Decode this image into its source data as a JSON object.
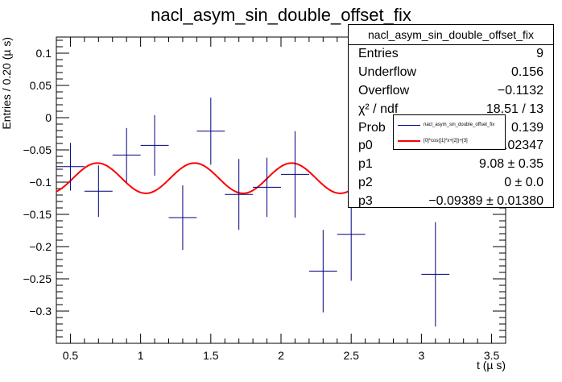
{
  "chart_data": {
    "type": "scatter",
    "title": "nacl_asym_sin_double_offset_fix",
    "xlabel": "t (µ s)",
    "ylabel": "Entries / 0.20 (µ s)",
    "xlim": [
      0.4,
      3.6
    ],
    "ylim": [
      -0.35,
      0.125
    ],
    "xticks": [
      0.5,
      1,
      1.5,
      2,
      2.5,
      3,
      3.5
    ],
    "xtick_labels": [
      "0.5",
      "1",
      "1.5",
      "2",
      "2.5",
      "3",
      "3.5"
    ],
    "yticks": [
      -0.3,
      -0.25,
      -0.2,
      -0.15,
      -0.1,
      -0.05,
      0,
      0.05,
      0.1
    ],
    "ytick_labels": [
      "−0.3",
      "−0.25",
      "−0.2",
      "−0.15",
      "−0.1",
      "−0.05",
      "0",
      "0.05",
      "0.1"
    ],
    "grid": false,
    "series": [
      {
        "name": "nacl_asym_sin_double_offset_fix",
        "kind": "error-bars",
        "color": "#000080",
        "x": [
          0.5,
          0.7,
          0.9,
          1.1,
          1.3,
          1.5,
          1.7,
          1.9,
          2.1,
          2.3,
          2.5,
          3.1
        ],
        "y": [
          -0.076,
          -0.114,
          -0.058,
          -0.043,
          -0.155,
          -0.021,
          -0.119,
          -0.108,
          -0.088,
          -0.238,
          -0.181,
          -0.243
        ],
        "xerr": 0.1,
        "yerr": [
          0.037,
          0.04,
          0.042,
          0.047,
          0.05,
          0.052,
          0.055,
          0.046,
          0.067,
          0.064,
          0.072,
          0.081
        ]
      },
      {
        "name": "[0]*cos([1]*x+[2])+[3]",
        "kind": "line",
        "color": "#ff0000",
        "params": {
          "p0": 0.02347,
          "p1": 9.08,
          "p2": 0.0,
          "p3": -0.09389
        }
      }
    ]
  },
  "stats_box": {
    "title": "nacl_asym_sin_double_offset_fix",
    "rows": [
      {
        "label": "Entries",
        "value": "9"
      },
      {
        "label": "Underflow",
        "value": "0.156"
      },
      {
        "label": "Overflow",
        "value": "−0.1132"
      },
      {
        "label": "χ² / ndf",
        "value": "18.51 / 13"
      },
      {
        "label": "Prob",
        "value": "0.139"
      },
      {
        "label": "p0",
        "value": "0.02347"
      },
      {
        "label": "p1",
        "value": "9.08 ± 0.35"
      },
      {
        "label": "p2",
        "value": "0 ± 0.0"
      },
      {
        "label": "p3",
        "value": "−0.09389 ± 0.01380"
      }
    ]
  },
  "legend": {
    "entries": [
      {
        "label": "nacl_asym_sin_double_offset_fix",
        "color": "#000080"
      },
      {
        "label": "[0]*cos([1]*x+[2])+[3]",
        "color": "#ff0000"
      }
    ]
  }
}
